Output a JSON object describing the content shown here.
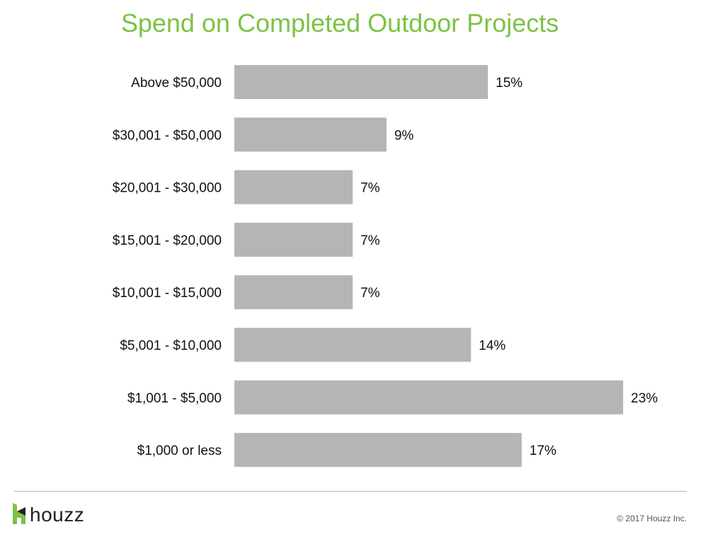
{
  "chart_data": {
    "type": "bar",
    "orientation": "horizontal",
    "title": "Spend on Completed Outdoor Projects",
    "categories": [
      "Above $50,000",
      "$30,001 - $50,000",
      "$20,001 - $30,000",
      "$15,001 - $20,000",
      "$10,001 - $15,000",
      "$5,001 - $10,000",
      "$1,001 - $5,000",
      "$1,000 or less"
    ],
    "values": [
      15,
      9,
      7,
      7,
      7,
      14,
      23,
      17
    ],
    "value_labels": [
      "15%",
      "9%",
      "7%",
      "7%",
      "7%",
      "14%",
      "23%",
      "17%"
    ],
    "unit": "%",
    "xlim": [
      0,
      23
    ],
    "bar_color": "#b5b5b5",
    "title_color": "#7cc243",
    "grid": false,
    "legend": "none"
  },
  "footer": {
    "brand": "houzz",
    "copyright": "© 2017 Houzz Inc."
  },
  "colors": {
    "brand_green": "#7cc243",
    "logo_dark": "#222222"
  },
  "icons": {
    "logo": "houzz-logo-icon"
  }
}
